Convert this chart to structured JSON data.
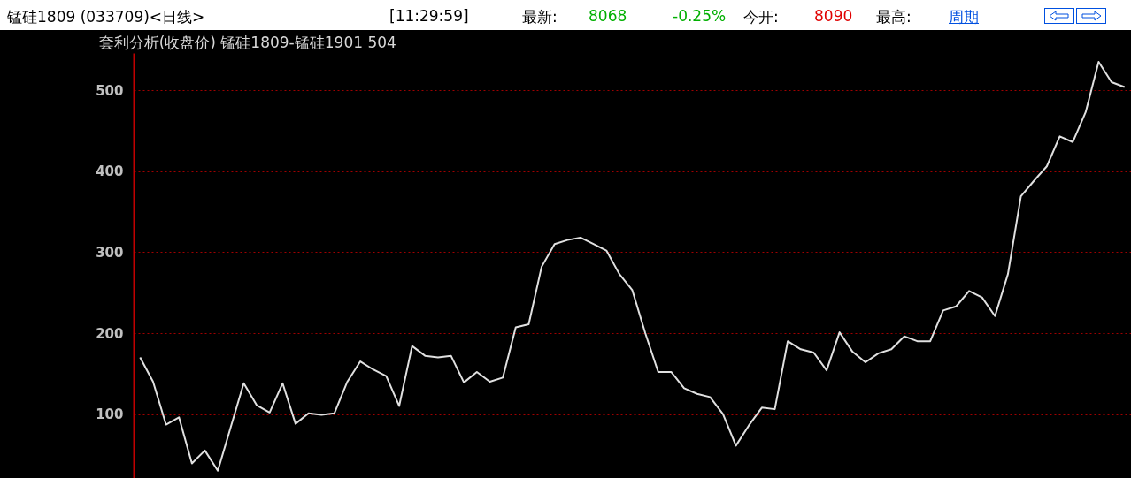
{
  "chart_data": {
    "type": "line",
    "title": "套利分析(收盘价) 锰硅1809-锰硅1901  504",
    "annotations": [
      "锰硅1809 (033709)<日线>",
      "[11:29:59]",
      "最新:",
      "8068",
      "-0.25%",
      "今开:",
      "8090",
      "最高:",
      "周期"
    ],
    "categories": [
      null,
      null,
      null,
      null,
      null,
      null,
      null,
      null,
      null,
      null,
      null,
      null,
      null,
      null,
      null,
      null,
      null,
      null,
      null,
      null,
      null,
      null,
      null,
      null,
      null,
      null,
      null,
      null,
      null,
      null,
      null,
      null,
      null,
      null,
      null,
      null,
      null,
      null,
      null,
      null,
      null,
      null,
      null,
      null,
      null,
      null,
      null,
      null,
      null,
      null,
      null,
      null,
      null,
      null,
      null,
      null,
      null,
      null,
      null,
      null,
      null,
      null,
      null,
      null,
      null,
      null,
      null,
      null,
      null,
      null,
      null,
      null,
      null,
      null,
      null,
      null,
      null
    ],
    "series": [
      {
        "color": "#e0e0e0",
        "values": [
          170,
          140,
          87,
          96,
          39,
          55,
          30,
          84,
          138,
          111,
          102,
          138,
          88,
          101,
          99,
          101,
          140,
          165,
          155,
          147,
          110,
          184,
          172,
          170,
          172,
          139,
          152,
          140,
          145,
          207,
          211,
          282,
          310,
          315,
          318,
          310,
          302,
          273,
          253,
          200,
          152,
          152,
          132,
          125,
          121,
          100,
          61,
          86,
          108,
          106,
          190,
          180,
          176,
          154,
          201,
          177,
          164,
          175,
          180,
          196,
          190,
          190,
          228,
          233,
          252,
          244,
          221,
          273,
          369,
          388,
          406,
          443,
          436,
          473,
          535,
          510,
          504
        ]
      }
    ],
    "ylim": [
      21,
      546
    ],
    "yticks": [
      100,
      200,
      300,
      400,
      500
    ],
    "grid": "y",
    "tick_labels": "y"
  }
}
